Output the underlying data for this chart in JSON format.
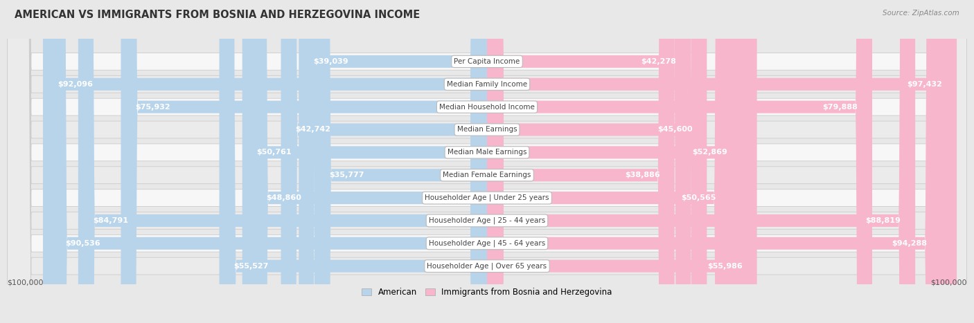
{
  "title": "AMERICAN VS IMMIGRANTS FROM BOSNIA AND HERZEGOVINA INCOME",
  "source": "Source: ZipAtlas.com",
  "categories": [
    "Per Capita Income",
    "Median Family Income",
    "Median Household Income",
    "Median Earnings",
    "Median Male Earnings",
    "Median Female Earnings",
    "Householder Age | Under 25 years",
    "Householder Age | 25 - 44 years",
    "Householder Age | 45 - 64 years",
    "Householder Age | Over 65 years"
  ],
  "american_values": [
    39039,
    92096,
    75932,
    42742,
    50761,
    35777,
    48860,
    84791,
    90536,
    55527
  ],
  "immigrant_values": [
    42278,
    97432,
    79888,
    45600,
    52869,
    38886,
    50565,
    88819,
    94288,
    55986
  ],
  "american_labels": [
    "$39,039",
    "$92,096",
    "$75,932",
    "$42,742",
    "$50,761",
    "$35,777",
    "$48,860",
    "$84,791",
    "$90,536",
    "$55,527"
  ],
  "immigrant_labels": [
    "$42,278",
    "$97,432",
    "$79,888",
    "$45,600",
    "$52,869",
    "$38,886",
    "$50,565",
    "$88,819",
    "$94,288",
    "$55,986"
  ],
  "american_color_light": "#b8d4eb",
  "american_color_dark": "#6aaed6",
  "immigrant_color_light": "#f7b6cc",
  "immigrant_color_dark": "#f0609a",
  "max_value": 100000,
  "background_color": "#e8e8e8",
  "row_bg_even": "#f7f7f7",
  "row_bg_odd": "#ebebeb",
  "label_inside_color": "#ffffff",
  "label_outside_color": "#555555",
  "label_threshold": 18000,
  "legend_american": "American",
  "legend_immigrant": "Immigrants from Bosnia and Herzegovina",
  "xlabel_left": "$100,000",
  "xlabel_right": "$100,000",
  "title_fontsize": 10.5,
  "source_fontsize": 7.5,
  "label_fontsize": 8.0,
  "cat_fontsize": 7.5
}
